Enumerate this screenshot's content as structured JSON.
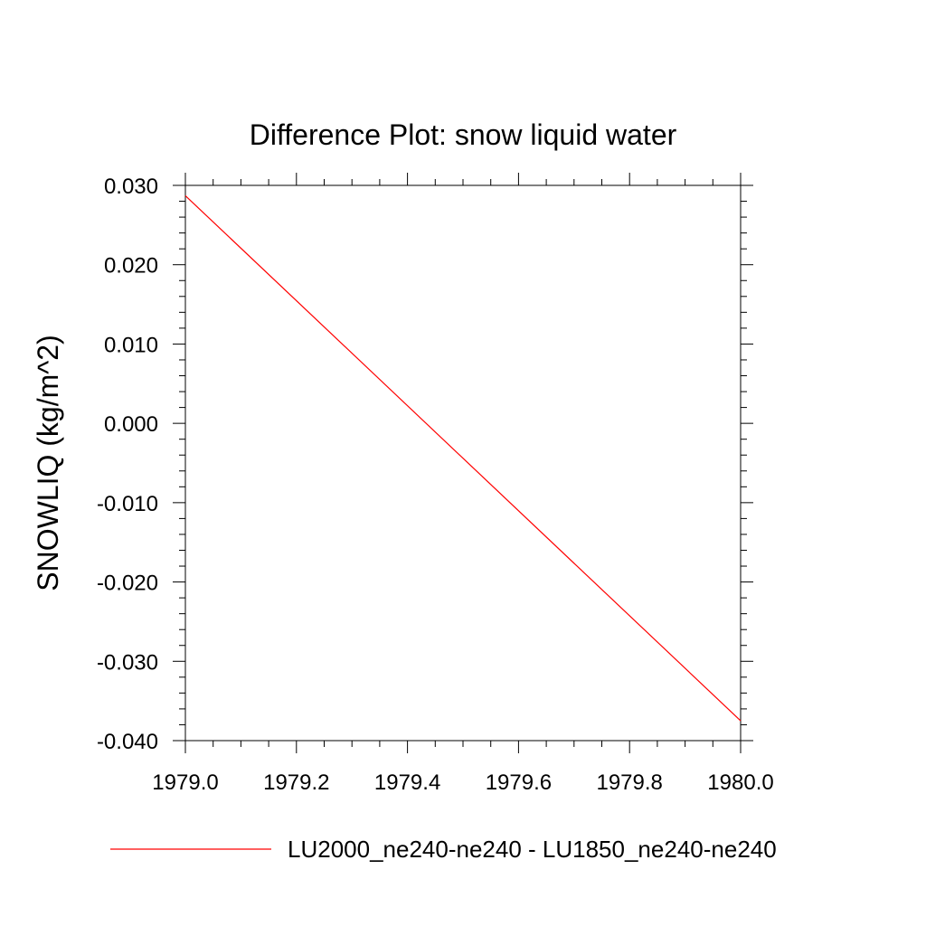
{
  "chart_data": {
    "type": "line",
    "title": "Difference Plot: snow liquid water",
    "xlabel": "",
    "ylabel": "SNOWLIQ  (kg/m^2)",
    "xlim": [
      1979.0,
      1980.0
    ],
    "ylim": [
      -0.04,
      0.03
    ],
    "x_ticks": [
      "1979.0",
      "1979.2",
      "1979.4",
      "1979.6",
      "1979.8",
      "1980.0"
    ],
    "y_ticks": [
      "0.030",
      "0.020",
      "0.010",
      "0.000",
      "-0.010",
      "-0.020",
      "-0.030",
      "-0.040"
    ],
    "grid": false,
    "legend_position": "bottom",
    "series": [
      {
        "name": "LU2000_ne240-ne240 - LU1850_ne240-ne240",
        "color": "#ff0000",
        "x": [
          1979.0,
          1980.0
        ],
        "y": [
          0.0287,
          -0.0375
        ]
      }
    ]
  }
}
